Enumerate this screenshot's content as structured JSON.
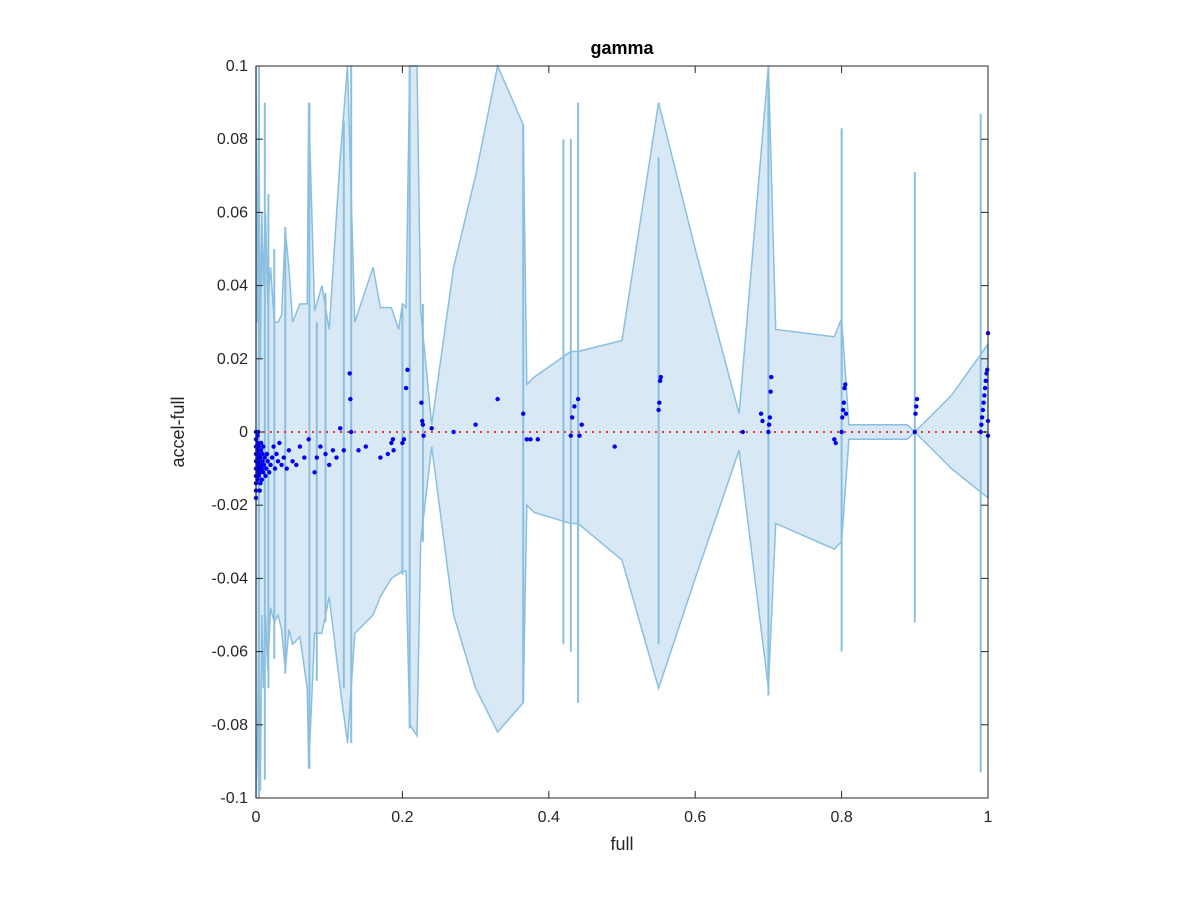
{
  "chart_data": {
    "type": "scatter",
    "title": "gamma",
    "xlabel": "full",
    "ylabel": "accel-full",
    "xlim": [
      0,
      1
    ],
    "ylim": [
      -0.1,
      0.1
    ],
    "xticks": [
      0,
      0.2,
      0.4,
      0.6,
      0.8,
      1
    ],
    "xtick_labels": [
      "0",
      "0.2",
      "0.4",
      "0.6",
      "0.8",
      "1"
    ],
    "yticks": [
      -0.1,
      -0.08,
      -0.06,
      -0.04,
      -0.02,
      0,
      0.02,
      0.04,
      0.06,
      0.08,
      0.1
    ],
    "ytick_labels": [
      "-0.1",
      "-0.08",
      "-0.06",
      "-0.04",
      "-0.02",
      "0",
      "0.02",
      "0.04",
      "0.06",
      "0.08",
      "0.1"
    ],
    "grid": false,
    "colors": {
      "band_fill": "#d8e8f4",
      "band_edge": "#8bbfe0",
      "points": "#0000ee",
      "reference": "#ee3333",
      "axes": "#262626"
    },
    "reference_line": {
      "y": 0,
      "style": "dotted"
    },
    "band": {
      "upper": [
        [
          0,
          0.1
        ],
        [
          0.002,
          0.03
        ],
        [
          0.004,
          0.09
        ],
        [
          0.006,
          0.02
        ],
        [
          0.008,
          0.06
        ],
        [
          0.01,
          0.04
        ],
        [
          0.013,
          0.06
        ],
        [
          0.016,
          0.035
        ],
        [
          0.02,
          0.045
        ],
        [
          0.025,
          0.03
        ],
        [
          0.03,
          0.03
        ],
        [
          0.035,
          0.032
        ],
        [
          0.04,
          0.055
        ],
        [
          0.045,
          0.045
        ],
        [
          0.05,
          0.03
        ],
        [
          0.06,
          0.035
        ],
        [
          0.07,
          0.035
        ],
        [
          0.072,
          0.09
        ],
        [
          0.08,
          0.033
        ],
        [
          0.09,
          0.04
        ],
        [
          0.1,
          0.028
        ],
        [
          0.115,
          0.075
        ],
        [
          0.125,
          0.1
        ],
        [
          0.135,
          0.03
        ],
        [
          0.16,
          0.045
        ],
        [
          0.17,
          0.034
        ],
        [
          0.185,
          0.034
        ],
        [
          0.195,
          0.028
        ],
        [
          0.2,
          0.035
        ],
        [
          0.205,
          0.034
        ],
        [
          0.21,
          0.1
        ],
        [
          0.22,
          0.1
        ],
        [
          0.225,
          0.033
        ],
        [
          0.24,
          0.002
        ],
        [
          0.27,
          0.045
        ],
        [
          0.3,
          0.07
        ],
        [
          0.33,
          0.1
        ],
        [
          0.365,
          0.084
        ],
        [
          0.37,
          0.013
        ],
        [
          0.38,
          0.015
        ],
        [
          0.43,
          0.022
        ],
        [
          0.44,
          0.022
        ],
        [
          0.5,
          0.025
        ],
        [
          0.55,
          0.09
        ],
        [
          0.6,
          0.05
        ],
        [
          0.66,
          0.005
        ],
        [
          0.7,
          0.1
        ],
        [
          0.71,
          0.028
        ],
        [
          0.79,
          0.026
        ],
        [
          0.8,
          0.031
        ],
        [
          0.81,
          0.002
        ],
        [
          0.89,
          0.002
        ],
        [
          0.9,
          0.0
        ],
        [
          0.95,
          0.01
        ],
        [
          1.0,
          0.024
        ]
      ],
      "lower": [
        [
          1.0,
          -0.018
        ],
        [
          0.95,
          -0.01
        ],
        [
          0.9,
          0.0
        ],
        [
          0.89,
          -0.002
        ],
        [
          0.81,
          -0.002
        ],
        [
          0.8,
          -0.03
        ],
        [
          0.79,
          -0.032
        ],
        [
          0.71,
          -0.025
        ],
        [
          0.7,
          -0.07
        ],
        [
          0.66,
          -0.005
        ],
        [
          0.6,
          -0.04
        ],
        [
          0.55,
          -0.07
        ],
        [
          0.5,
          -0.035
        ],
        [
          0.44,
          -0.025
        ],
        [
          0.43,
          -0.025
        ],
        [
          0.38,
          -0.022
        ],
        [
          0.37,
          -0.02
        ],
        [
          0.365,
          -0.074
        ],
        [
          0.33,
          -0.082
        ],
        [
          0.3,
          -0.07
        ],
        [
          0.27,
          -0.05
        ],
        [
          0.24,
          -0.004
        ],
        [
          0.225,
          -0.03
        ],
        [
          0.22,
          -0.083
        ],
        [
          0.21,
          -0.08
        ],
        [
          0.205,
          -0.038
        ],
        [
          0.2,
          -0.038
        ],
        [
          0.185,
          -0.04
        ],
        [
          0.17,
          -0.045
        ],
        [
          0.16,
          -0.05
        ],
        [
          0.135,
          -0.055
        ],
        [
          0.125,
          -0.085
        ],
        [
          0.115,
          -0.07
        ],
        [
          0.1,
          -0.045
        ],
        [
          0.09,
          -0.055
        ],
        [
          0.08,
          -0.055
        ],
        [
          0.072,
          -0.092
        ],
        [
          0.07,
          -0.07
        ],
        [
          0.06,
          -0.056
        ],
        [
          0.05,
          -0.058
        ],
        [
          0.045,
          -0.054
        ],
        [
          0.04,
          -0.065
        ],
        [
          0.035,
          -0.054
        ],
        [
          0.03,
          -0.05
        ],
        [
          0.025,
          -0.052
        ],
        [
          0.02,
          -0.048
        ],
        [
          0.016,
          -0.065
        ],
        [
          0.013,
          -0.05
        ],
        [
          0.01,
          -0.07
        ],
        [
          0.008,
          -0.05
        ],
        [
          0.006,
          -0.098
        ],
        [
          0.004,
          -0.055
        ],
        [
          0.002,
          -0.085
        ],
        [
          0,
          -0.1
        ]
      ],
      "spikes": [
        [
          0.004,
          0.1,
          -0.1
        ],
        [
          0.012,
          0.09,
          -0.095
        ],
        [
          0.017,
          0.065,
          -0.07
        ],
        [
          0.025,
          0.05,
          -0.062
        ],
        [
          0.04,
          0.056,
          -0.066
        ],
        [
          0.073,
          0.09,
          -0.092
        ],
        [
          0.083,
          0.03,
          -0.068
        ],
        [
          0.095,
          0.038,
          -0.052
        ],
        [
          0.12,
          0.085,
          -0.07
        ],
        [
          0.13,
          0.1,
          -0.085
        ],
        [
          0.2,
          0.034,
          -0.039
        ],
        [
          0.21,
          0.1,
          -0.081
        ],
        [
          0.228,
          0.035,
          -0.03
        ],
        [
          0.365,
          0.084,
          -0.074
        ],
        [
          0.42,
          0.08,
          -0.058
        ],
        [
          0.43,
          0.08,
          -0.06
        ],
        [
          0.44,
          0.09,
          -0.074
        ],
        [
          0.55,
          0.075,
          -0.058
        ],
        [
          0.7,
          0.1,
          -0.072
        ],
        [
          0.8,
          0.083,
          -0.06
        ],
        [
          0.9,
          0.071,
          -0.052
        ],
        [
          0.99,
          0.087,
          -0.093
        ]
      ]
    },
    "points": [
      [
        0.0,
        -0.018
      ],
      [
        0.0,
        -0.016
      ],
      [
        0.0,
        -0.014
      ],
      [
        0.0,
        -0.012
      ],
      [
        0.0,
        -0.01
      ],
      [
        0.0,
        -0.008
      ],
      [
        0.0,
        -0.006
      ],
      [
        0.0,
        -0.004
      ],
      [
        0.0,
        -0.002
      ],
      [
        0.0,
        0.0
      ],
      [
        0.002,
        -0.013
      ],
      [
        0.002,
        -0.011
      ],
      [
        0.002,
        -0.009
      ],
      [
        0.002,
        -0.007
      ],
      [
        0.002,
        -0.005
      ],
      [
        0.002,
        -0.003
      ],
      [
        0.002,
        -0.001
      ],
      [
        0.003,
        0.0
      ],
      [
        0.004,
        -0.012
      ],
      [
        0.004,
        -0.01
      ],
      [
        0.004,
        -0.008
      ],
      [
        0.004,
        -0.006
      ],
      [
        0.004,
        -0.004
      ],
      [
        0.005,
        -0.016
      ],
      [
        0.006,
        -0.014
      ],
      [
        0.006,
        -0.011
      ],
      [
        0.006,
        -0.009
      ],
      [
        0.006,
        -0.007
      ],
      [
        0.007,
        -0.005
      ],
      [
        0.007,
        -0.003
      ],
      [
        0.008,
        -0.013
      ],
      [
        0.008,
        -0.01
      ],
      [
        0.009,
        -0.008
      ],
      [
        0.009,
        -0.006
      ],
      [
        0.01,
        -0.011
      ],
      [
        0.01,
        -0.004
      ],
      [
        0.011,
        -0.009
      ],
      [
        0.012,
        -0.007
      ],
      [
        0.013,
        -0.012
      ],
      [
        0.014,
        -0.01
      ],
      [
        0.015,
        -0.006
      ],
      [
        0.016,
        -0.008
      ],
      [
        0.018,
        -0.011
      ],
      [
        0.02,
        -0.009
      ],
      [
        0.022,
        -0.007
      ],
      [
        0.024,
        -0.004
      ],
      [
        0.026,
        -0.01
      ],
      [
        0.028,
        -0.006
      ],
      [
        0.03,
        -0.008
      ],
      [
        0.032,
        -0.003
      ],
      [
        0.035,
        -0.009
      ],
      [
        0.038,
        -0.007
      ],
      [
        0.042,
        -0.01
      ],
      [
        0.045,
        -0.005
      ],
      [
        0.05,
        -0.008
      ],
      [
        0.055,
        -0.009
      ],
      [
        0.06,
        -0.004
      ],
      [
        0.066,
        -0.007
      ],
      [
        0.072,
        -0.002
      ],
      [
        0.08,
        -0.011
      ],
      [
        0.083,
        -0.007
      ],
      [
        0.088,
        -0.004
      ],
      [
        0.095,
        -0.006
      ],
      [
        0.1,
        -0.009
      ],
      [
        0.105,
        -0.005
      ],
      [
        0.11,
        -0.007
      ],
      [
        0.115,
        0.001
      ],
      [
        0.12,
        -0.005
      ],
      [
        0.128,
        0.016
      ],
      [
        0.129,
        0.009
      ],
      [
        0.13,
        0.0
      ],
      [
        0.14,
        -0.005
      ],
      [
        0.15,
        -0.004
      ],
      [
        0.17,
        -0.007
      ],
      [
        0.18,
        -0.006
      ],
      [
        0.185,
        -0.003
      ],
      [
        0.187,
        -0.002
      ],
      [
        0.188,
        -0.005
      ],
      [
        0.2,
        -0.003
      ],
      [
        0.202,
        -0.002
      ],
      [
        0.205,
        0.012
      ],
      [
        0.207,
        0.017
      ],
      [
        0.226,
        0.008
      ],
      [
        0.227,
        0.003
      ],
      [
        0.228,
        0.002
      ],
      [
        0.229,
        -0.001
      ],
      [
        0.24,
        0.001
      ],
      [
        0.27,
        0.0
      ],
      [
        0.3,
        0.002
      ],
      [
        0.33,
        0.009
      ],
      [
        0.365,
        0.005
      ],
      [
        0.37,
        -0.002
      ],
      [
        0.375,
        -0.002
      ],
      [
        0.385,
        -0.002
      ],
      [
        0.43,
        -0.001
      ],
      [
        0.432,
        0.004
      ],
      [
        0.435,
        0.007
      ],
      [
        0.44,
        0.009
      ],
      [
        0.442,
        -0.001
      ],
      [
        0.445,
        0.002
      ],
      [
        0.49,
        -0.004
      ],
      [
        0.55,
        0.006
      ],
      [
        0.551,
        0.008
      ],
      [
        0.552,
        0.014
      ],
      [
        0.553,
        0.015
      ],
      [
        0.665,
        0.0
      ],
      [
        0.69,
        0.005
      ],
      [
        0.692,
        0.003
      ],
      [
        0.7,
        0.0
      ],
      [
        0.701,
        0.002
      ],
      [
        0.702,
        0.004
      ],
      [
        0.703,
        0.011
      ],
      [
        0.704,
        0.015
      ],
      [
        0.79,
        -0.002
      ],
      [
        0.792,
        -0.003
      ],
      [
        0.8,
        0.0
      ],
      [
        0.801,
        0.004
      ],
      [
        0.802,
        0.006
      ],
      [
        0.803,
        0.008
      ],
      [
        0.804,
        0.012
      ],
      [
        0.805,
        0.013
      ],
      [
        0.806,
        0.005
      ],
      [
        0.9,
        0.0
      ],
      [
        0.901,
        0.005
      ],
      [
        0.902,
        0.007
      ],
      [
        0.903,
        0.009
      ],
      [
        0.99,
        0.0
      ],
      [
        0.991,
        0.002
      ],
      [
        0.992,
        0.004
      ],
      [
        0.993,
        0.006
      ],
      [
        0.994,
        0.008
      ],
      [
        0.995,
        0.01
      ],
      [
        0.996,
        0.012
      ],
      [
        0.997,
        0.014
      ],
      [
        0.998,
        0.016
      ],
      [
        0.999,
        0.017
      ],
      [
        1.0,
        0.027
      ],
      [
        1.0,
        0.003
      ],
      [
        1.0,
        -0.001
      ]
    ]
  }
}
